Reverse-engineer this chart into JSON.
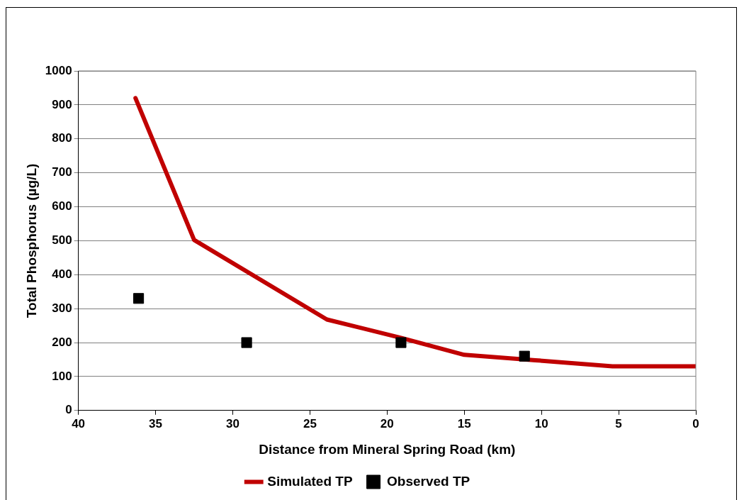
{
  "chart_data": {
    "type": "line",
    "xlabel": "Distance from Mineral Spring Road (km)",
    "ylabel": "Total Phosphorus (µg/L)",
    "xlim": [
      40,
      0
    ],
    "xticks": [
      40,
      35,
      30,
      25,
      20,
      15,
      10,
      5,
      0
    ],
    "ylim": [
      0,
      1000
    ],
    "yticks": [
      0,
      100,
      200,
      300,
      400,
      500,
      600,
      700,
      800,
      900,
      1000
    ],
    "grid": "y",
    "legend": "bottom",
    "series": [
      {
        "name": "Simulated TP",
        "color": "#c00000",
        "marker": "none",
        "x": [
          36.3,
          32.5,
          23.9,
          19.1,
          15,
          10.4,
          5.4,
          0
        ],
        "values": [
          920,
          502,
          268,
          214,
          164,
          148,
          130,
          130
        ]
      },
      {
        "name": "Observed TP",
        "type": "scatter",
        "color": "#000000",
        "marker": "square",
        "x": [
          36.1,
          29.1,
          19.1,
          11.1
        ],
        "values": [
          330,
          200,
          200,
          160
        ]
      }
    ]
  }
}
